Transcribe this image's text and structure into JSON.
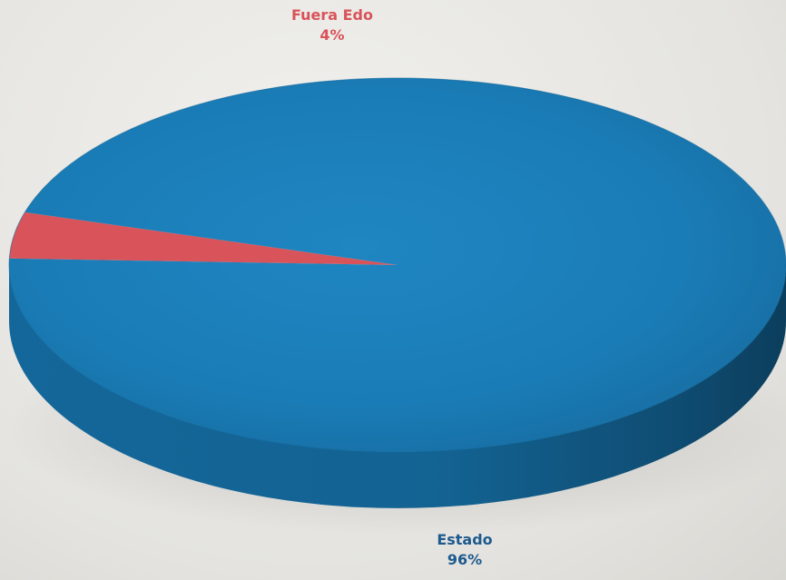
{
  "chart_data": {
    "type": "pie",
    "title": "",
    "style": "3d",
    "slices": [
      {
        "name": "Fuera Edo",
        "value": 4,
        "label": "4%",
        "color": "#d9535a"
      },
      {
        "name": "Estado",
        "value": 96,
        "label": "96%",
        "color": "#1b7fb9"
      }
    ]
  }
}
